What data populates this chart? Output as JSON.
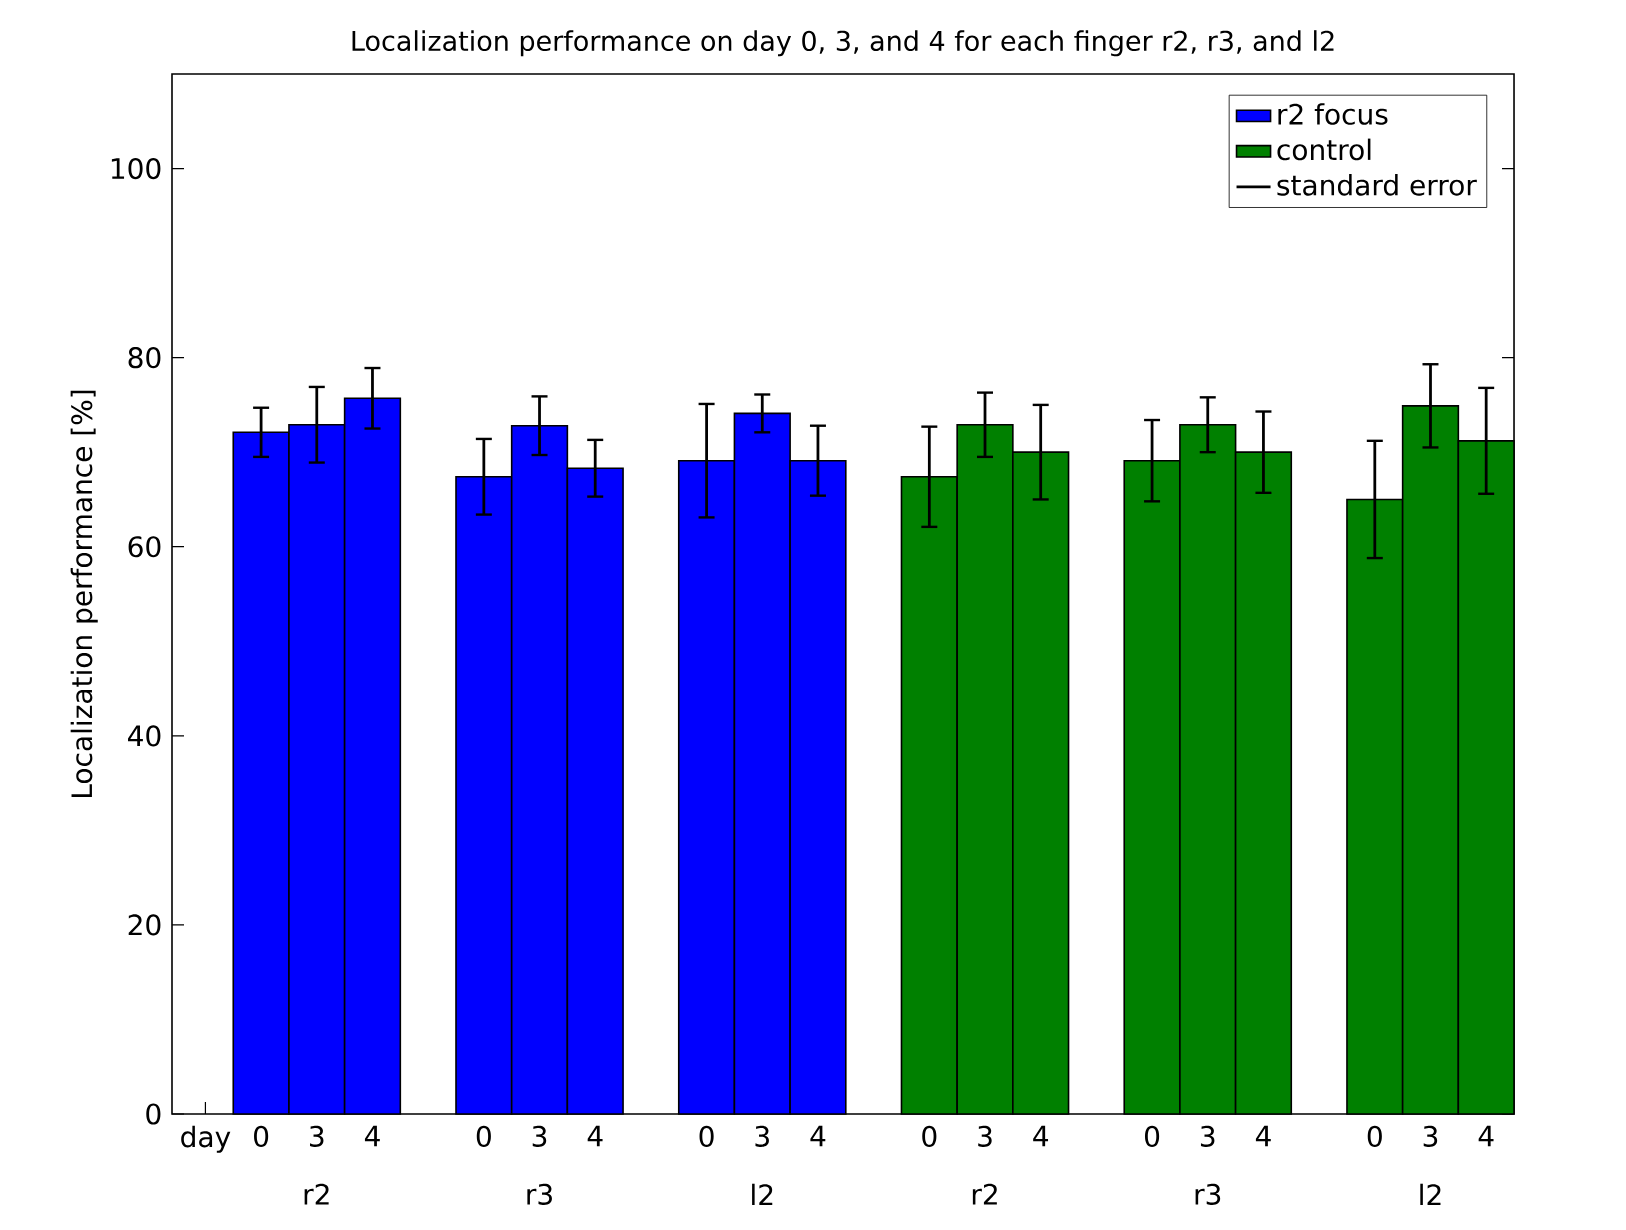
{
  "chart_data": {
    "type": "bar",
    "title": "Localization performance on day 0, 3, and 4 for each finger r2, r3, and l2",
    "ylabel": "Localization performance [%]",
    "categories": [
      "day",
      "0",
      "3",
      "4",
      null,
      "0",
      "3",
      "4",
      null,
      "0",
      "3",
      "4",
      null,
      "0",
      "3",
      "4",
      null,
      "0",
      "3",
      "4",
      null,
      "0",
      "3",
      "4"
    ],
    "series": [
      {
        "name": "r2 focus",
        "color": "#0000ff",
        "values": [
          null,
          72.1,
          72.9,
          75.7,
          null,
          67.4,
          72.8,
          68.3,
          null,
          69.1,
          74.1,
          69.1,
          null,
          null,
          null,
          null,
          null,
          null,
          null,
          null,
          null,
          null,
          null,
          null
        ],
        "errors": [
          null,
          2.6,
          4.0,
          3.2,
          null,
          4.0,
          3.1,
          3.0,
          null,
          6.0,
          2.0,
          3.7,
          null,
          null,
          null,
          null,
          null,
          null,
          null,
          null,
          null,
          null,
          null,
          null
        ]
      },
      {
        "name": "control",
        "color": "#008000",
        "values": [
          null,
          null,
          null,
          null,
          null,
          null,
          null,
          null,
          null,
          null,
          null,
          null,
          null,
          67.4,
          72.9,
          70.0,
          null,
          69.1,
          72.9,
          70.0,
          null,
          65.0,
          74.9,
          71.2
        ],
        "errors": [
          null,
          null,
          null,
          null,
          null,
          null,
          null,
          null,
          null,
          null,
          null,
          null,
          null,
          5.3,
          3.4,
          5.0,
          null,
          4.3,
          2.9,
          4.3,
          null,
          6.2,
          4.4,
          5.6
        ]
      }
    ],
    "annotations": [
      "r2",
      "r3",
      "l2",
      "r2",
      "r3",
      "l2",
      "standard error"
    ],
    "ylim": [
      0,
      110
    ],
    "yticks": [
      0,
      20,
      40,
      60,
      80,
      100
    ],
    "legend": "top right"
  }
}
